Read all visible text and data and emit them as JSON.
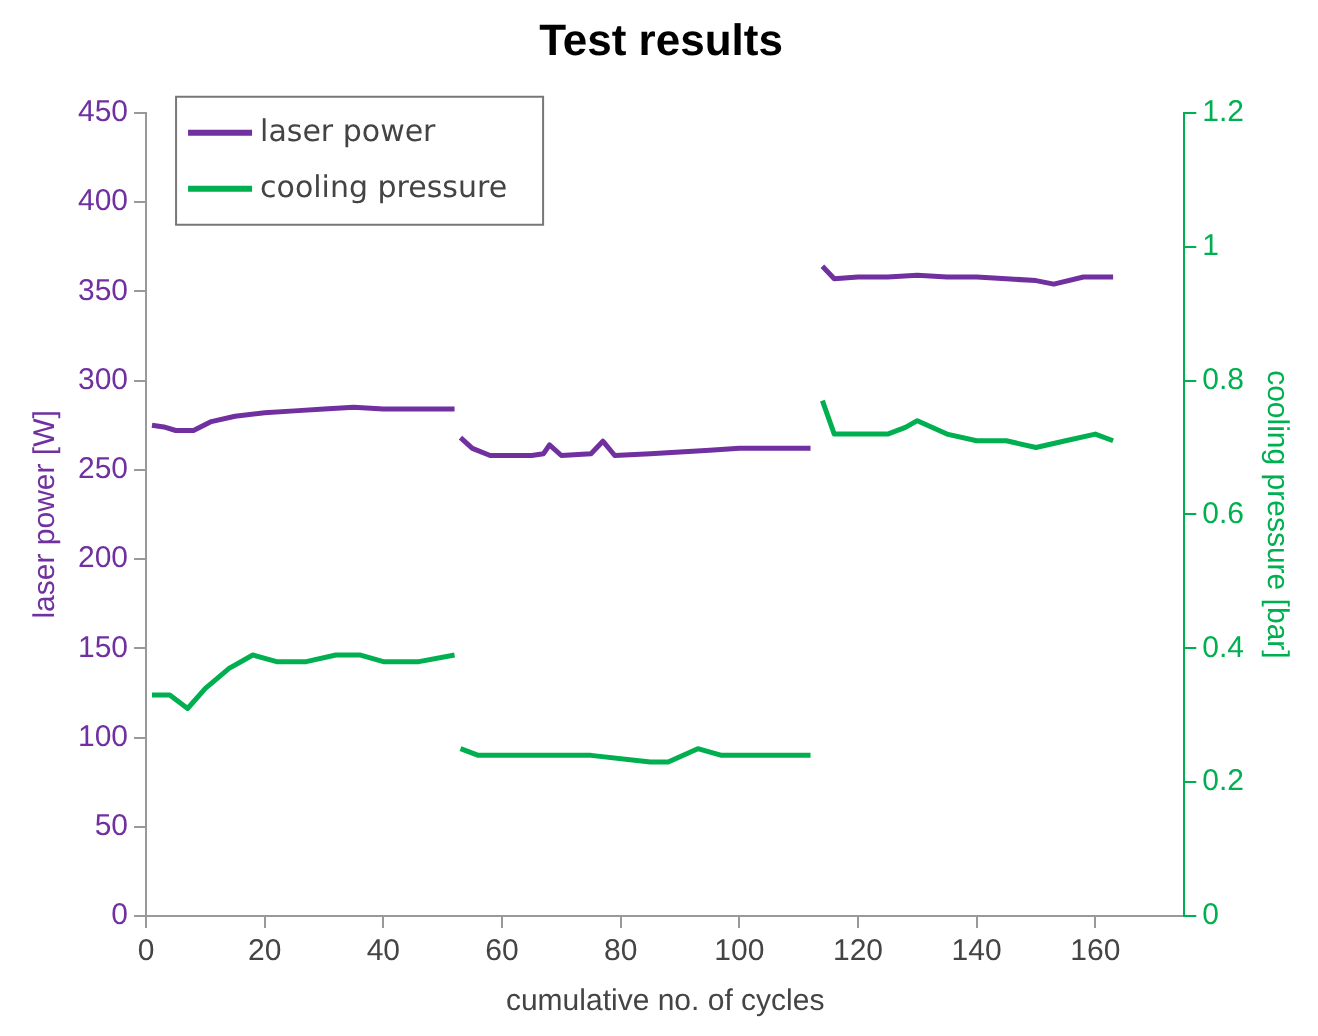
{
  "chart_data": {
    "type": "line",
    "title": "Test results",
    "xlabel": "cumulative no. of cycles",
    "ylabel": "laser power [W]",
    "y2label": "cooling pressure [bar]",
    "xlim": [
      0,
      175
    ],
    "xticks": [
      0,
      20,
      40,
      60,
      80,
      100,
      120,
      140,
      160
    ],
    "ylim": [
      0,
      450
    ],
    "yticks": [
      0,
      50,
      100,
      150,
      200,
      250,
      300,
      350,
      400,
      450
    ],
    "y2lim": [
      0,
      1.2
    ],
    "y2ticks": [
      0,
      {
        "value": 0.2,
        "label": "0.2"
      },
      {
        "value": 0.4,
        "label": "0.4"
      },
      {
        "value": 0.6,
        "label": "0.6"
      },
      {
        "value": 0.8,
        "label": "0.8"
      },
      1,
      {
        "value": 1.2,
        "label": "1.2"
      }
    ],
    "grid": false,
    "legend": "top left",
    "marker": "none",
    "line_style": "solid",
    "series": [
      {
        "name": "laser power",
        "color": "#7030a0",
        "x": [
          1,
          3,
          5,
          8,
          11,
          15,
          20,
          25,
          30,
          35,
          40,
          45,
          52,
          52.5,
          53,
          55,
          58,
          62,
          65,
          67,
          68,
          70,
          75,
          77,
          79,
          85,
          90,
          95,
          100,
          106,
          112,
          113,
          114,
          116,
          120,
          125,
          130,
          135,
          140,
          145,
          150,
          153,
          158,
          163
        ],
        "values": [
          275,
          274,
          272,
          272,
          277,
          280,
          282,
          283,
          284,
          285,
          284,
          284,
          284,
          null,
          268,
          262,
          258,
          258,
          258,
          259,
          264,
          258,
          259,
          266,
          258,
          259,
          260,
          261,
          262,
          262,
          262,
          null,
          364,
          357,
          358,
          358,
          359,
          358,
          358,
          357,
          356,
          354,
          358,
          358
        ]
      },
      {
        "name": "cooling pressure",
        "color": "#00b050",
        "axis": "y2",
        "x": [
          1,
          4,
          7,
          10,
          14,
          18,
          22,
          27,
          32,
          36,
          40,
          46,
          52,
          52.5,
          53,
          56,
          60,
          65,
          75,
          85,
          88,
          93,
          97,
          100,
          105,
          108,
          112,
          113,
          114,
          116,
          120,
          125,
          128,
          130,
          135,
          140,
          145,
          150,
          155,
          160,
          163
        ],
        "values": [
          0.33,
          0.33,
          0.31,
          0.34,
          0.37,
          0.39,
          0.38,
          0.38,
          0.39,
          0.39,
          0.38,
          0.38,
          0.39,
          null,
          0.25,
          0.24,
          0.24,
          0.24,
          0.24,
          0.23,
          0.23,
          0.25,
          0.24,
          0.24,
          0.24,
          0.24,
          0.24,
          null,
          0.77,
          0.72,
          0.72,
          0.72,
          0.73,
          0.74,
          0.72,
          0.71,
          0.71,
          0.7,
          0.71,
          0.72,
          0.71
        ]
      }
    ]
  }
}
